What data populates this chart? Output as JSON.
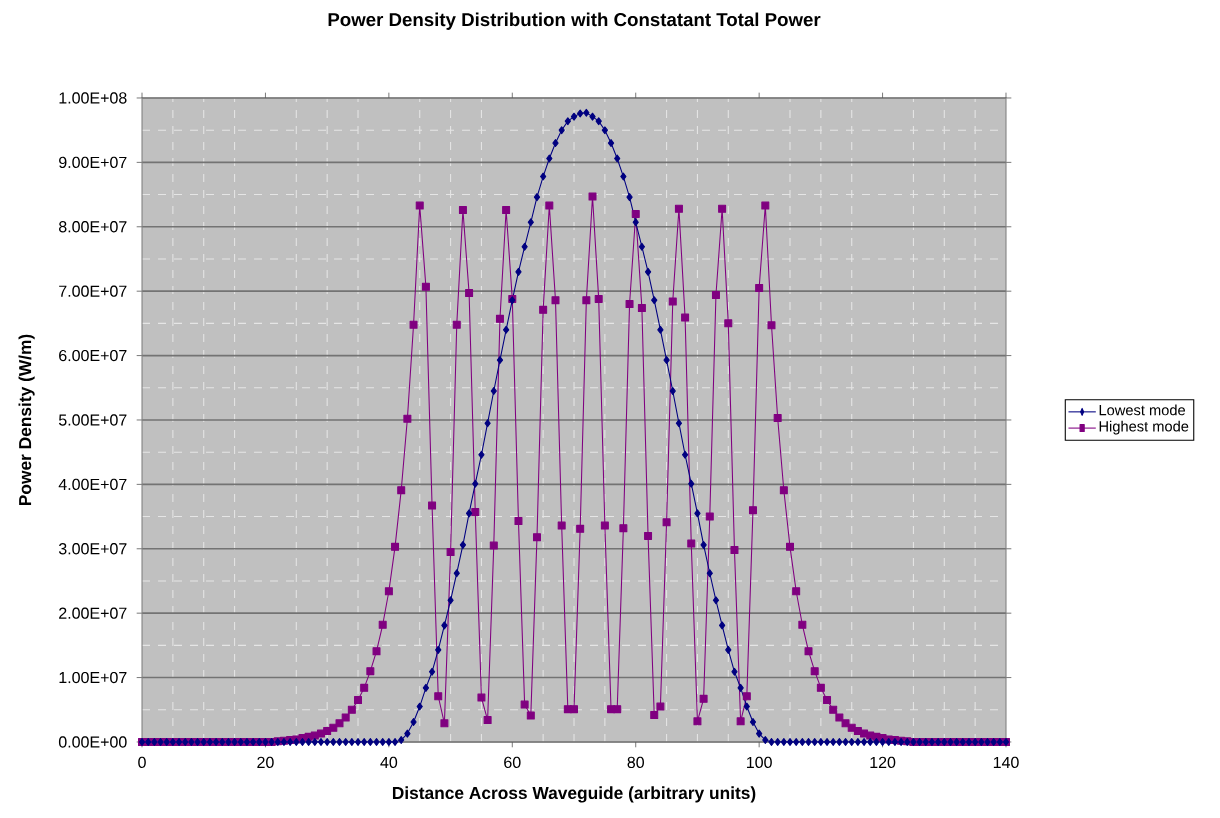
{
  "chart_data": {
    "type": "line",
    "title": "Power Density Distribution with Constatant Total Power",
    "xlabel": "Distance Across Waveguide (arbitrary units)",
    "ylabel": "Power Density (W/m)",
    "x": [
      0,
      1,
      2,
      3,
      4,
      5,
      6,
      7,
      8,
      9,
      10,
      11,
      12,
      13,
      14,
      15,
      16,
      17,
      18,
      19,
      20,
      21,
      22,
      23,
      24,
      25,
      26,
      27,
      28,
      29,
      30,
      31,
      32,
      33,
      34,
      35,
      36,
      37,
      38,
      39,
      40,
      41,
      42,
      43,
      44,
      45,
      46,
      47,
      48,
      49,
      50,
      51,
      52,
      53,
      54,
      55,
      56,
      57,
      58,
      59,
      60,
      61,
      62,
      63,
      64,
      65,
      66,
      67,
      68,
      69,
      70,
      71,
      72,
      73,
      74,
      75,
      76,
      77,
      78,
      79,
      80,
      81,
      82,
      83,
      84,
      85,
      86,
      87,
      88,
      89,
      90,
      91,
      92,
      93,
      94,
      95,
      96,
      97,
      98,
      99,
      100,
      101,
      102,
      103,
      104,
      105,
      106,
      107,
      108,
      109,
      110,
      111,
      112,
      113,
      114,
      115,
      116,
      117,
      118,
      119,
      120,
      121,
      122,
      123,
      124,
      125,
      126,
      127,
      128,
      129,
      130,
      131,
      132,
      133,
      134,
      135,
      136,
      137,
      138,
      139,
      140
    ],
    "series": [
      {
        "name": "Lowest mode",
        "color": "#000080",
        "marker": "diamond",
        "values": [
          0,
          0,
          0,
          0,
          0,
          0,
          0,
          0,
          0,
          0,
          0,
          0,
          0,
          0,
          0,
          0,
          0,
          0,
          0,
          0,
          0,
          0,
          0,
          0,
          0,
          0,
          0,
          0,
          0,
          0,
          0,
          0,
          0,
          0,
          0,
          0,
          0,
          0,
          0,
          0,
          0,
          0,
          300000.0,
          1300000.0,
          3100000.0,
          5500000.0,
          8400000.0,
          10900000.0,
          14300000.0,
          18100000.0,
          22000000.0,
          26200000.0,
          30600000.0,
          35500000.0,
          40100000.0,
          44600000.0,
          49500000.0,
          54500000.0,
          59300000.0,
          64000000.0,
          68600000.0,
          73000000.0,
          76900000.0,
          80700000.0,
          84600000.0,
          87800000.0,
          90600000.0,
          93000000.0,
          95000000.0,
          96400000.0,
          97100000.0,
          97600000.0,
          97700000.0,
          97100000.0,
          96400000.0,
          95000000.0,
          93000000.0,
          90600000.0,
          87800000.0,
          84600000.0,
          80700000.0,
          76900000.0,
          73000000.0,
          68600000.0,
          64000000.0,
          59300000.0,
          54500000.0,
          49500000.0,
          44600000.0,
          40100000.0,
          35500000.0,
          30600000.0,
          26200000.0,
          22000000.0,
          18100000.0,
          14300000.0,
          10900000.0,
          8400000.0,
          5500000.0,
          3100000.0,
          1300000.0,
          300000.0,
          0,
          0,
          0,
          0,
          0,
          0,
          0,
          0,
          0,
          0,
          0,
          0,
          0,
          0,
          0,
          0,
          0,
          0,
          0,
          0,
          0,
          0,
          0,
          0,
          0,
          0,
          0,
          0,
          0,
          0,
          0,
          0,
          0,
          0,
          0,
          0,
          0,
          0,
          0
        ]
      },
      {
        "name": "Highest mode",
        "color": "#800080",
        "marker": "square",
        "values": [
          0,
          0,
          0,
          0,
          0,
          0,
          0,
          0,
          0,
          0,
          0,
          0,
          0,
          0,
          0,
          0,
          0,
          0,
          0,
          0,
          0,
          0,
          100000.0,
          200000.0,
          300000.0,
          400000.0,
          600000.0,
          800000.0,
          1000000.0,
          1300000.0,
          1700000.0,
          2200000.0,
          2900000.0,
          3800000.0,
          5000000.0,
          6500000.0,
          8400000.0,
          11000000.0,
          14100000.0,
          18200000.0,
          23400000.0,
          30300000.0,
          39100000.0,
          50200000.0,
          64800000.0,
          83300000.0,
          70700000.0,
          36700000.0,
          7100000.0,
          2900000.0,
          29500000.0,
          64800000.0,
          82600000.0,
          69700000.0,
          35700000.0,
          6900000.0,
          3400000.0,
          30500000.0,
          65700000.0,
          82600000.0,
          68800000.0,
          34300000.0,
          5800000.0,
          4100000.0,
          31800000.0,
          67100000.0,
          83300000.0,
          68600000.0,
          33600000.0,
          5100000.0,
          5100000.0,
          33100000.0,
          68600000.0,
          84700000.0,
          68800000.0,
          33600000.0,
          5100000.0,
          5100000.0,
          33200000.0,
          68000000.0,
          82000000.0,
          67400000.0,
          32000000.0,
          4200000.0,
          5500000.0,
          34100000.0,
          68400000.0,
          82800000.0,
          65900000.0,
          30800000.0,
          3200000.0,
          6700000.0,
          35000000.0,
          69400000.0,
          82800000.0,
          65000000.0,
          29800000.0,
          3200000.0,
          7100000.0,
          36000000.0,
          70500000.0,
          83300000.0,
          64700000.0,
          50300000.0,
          39100000.0,
          30300000.0,
          23400000.0,
          18200000.0,
          14100000.0,
          11000000.0,
          8400000.0,
          6500000.0,
          5000000.0,
          3800000.0,
          2900000.0,
          2200000.0,
          1700000.0,
          1300000.0,
          1000000.0,
          800000.0,
          600000.0,
          400000.0,
          300000.0,
          200000.0,
          100000.0,
          0,
          0,
          0,
          0,
          0,
          0,
          0,
          0,
          0,
          0,
          0,
          0,
          0,
          0,
          0,
          0
        ]
      }
    ],
    "xlim": [
      0,
      140
    ],
    "xticks": [
      0,
      20,
      40,
      60,
      80,
      100,
      120,
      140
    ],
    "ylim": [
      0,
      100000000
    ],
    "yticks": [
      {
        "value": 0,
        "label": "0.00E+00"
      },
      {
        "value": 10000000,
        "label": "1.00E+07"
      },
      {
        "value": 20000000,
        "label": "2.00E+07"
      },
      {
        "value": 30000000,
        "label": "3.00E+07"
      },
      {
        "value": 40000000,
        "label": "4.00E+07"
      },
      {
        "value": 50000000,
        "label": "5.00E+07"
      },
      {
        "value": 60000000,
        "label": "6.00E+07"
      },
      {
        "value": 70000000,
        "label": "7.00E+07"
      },
      {
        "value": 80000000,
        "label": "8.00E+07"
      },
      {
        "value": 90000000,
        "label": "9.00E+07"
      },
      {
        "value": 100000000,
        "label": "1.00E+08"
      }
    ],
    "grid": true,
    "legend": "right"
  }
}
